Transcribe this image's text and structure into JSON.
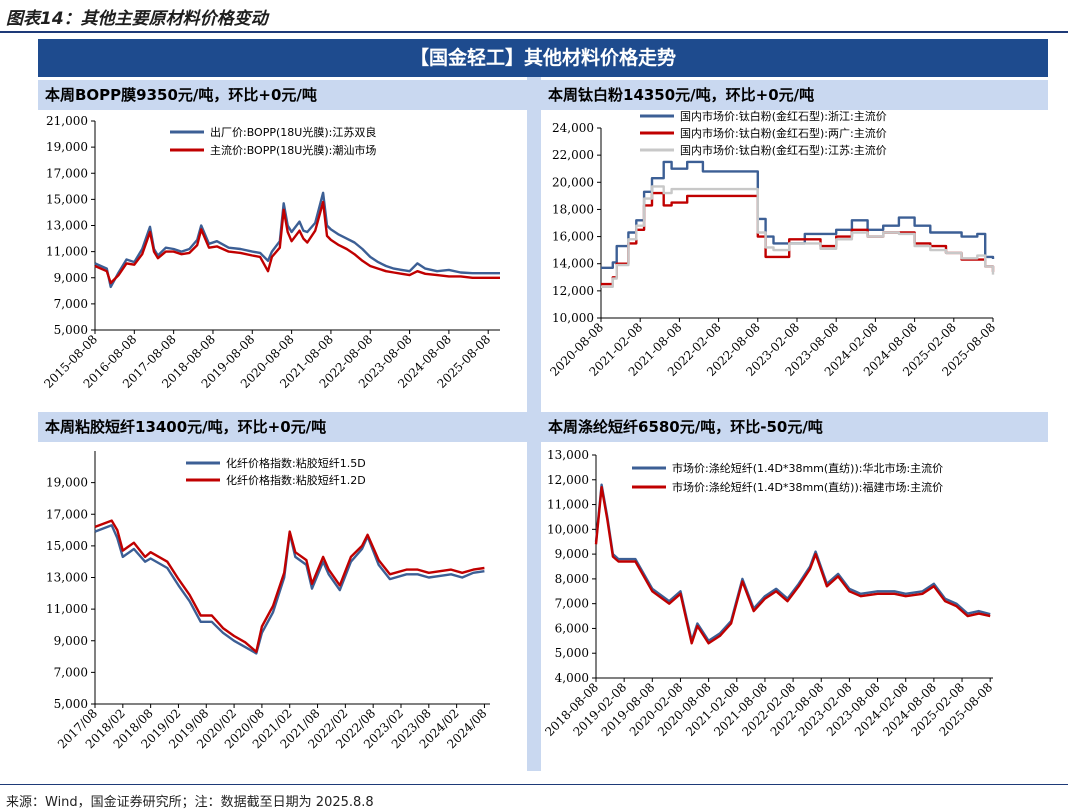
{
  "figure_title": "图表14：其他主要原材料价格变动",
  "banner": "【国金轻工】其他材料价格走势",
  "source": "来源：Wind，国金证券研究所；注：数据截至日期为 2025.8.8",
  "panels": [
    {
      "header": "本周BOPP膜9350元/吨，环比+0元/吨"
    },
    {
      "header": "本周钛白粉14350元/吨，环比+0元/吨"
    },
    {
      "header": "本周粘胶短纤13400元/吨，环比+0元/吨"
    },
    {
      "header": "本周涤纶短纤6580元/吨，环比-50元/吨"
    }
  ],
  "chart_data": [
    {
      "type": "line",
      "title": "本周BOPP膜9350元/吨，环比+0元/吨",
      "ylim": [
        5000,
        21000
      ],
      "yticks": [
        5000,
        7000,
        9000,
        11000,
        13000,
        15000,
        17000,
        19000,
        21000
      ],
      "ytick_labels": [
        "5,000",
        "7,000",
        "9,000",
        "11,000",
        "13,000",
        "15,000",
        "17,000",
        "19,000",
        "21,000"
      ],
      "xlim": [
        2015.6,
        2025.9
      ],
      "xticks": [
        2015.6,
        2016.6,
        2017.6,
        2018.6,
        2019.6,
        2020.6,
        2021.6,
        2022.6,
        2023.6,
        2024.6,
        2025.6
      ],
      "xtick_labels": [
        "2015-08-08",
        "2016-08-08",
        "2017-08-08",
        "2018-08-08",
        "2019-08-08",
        "2020-08-08",
        "2021-08-08",
        "2022-08-08",
        "2023-08-08",
        "2024-08-08",
        "2025-08-08"
      ],
      "legend_position": "top-center",
      "series": [
        {
          "name": "出厂价:BOPP(18U光膜):江苏双良",
          "color": "#3c5f95",
          "x": [
            2015.6,
            2015.9,
            2016.0,
            2016.2,
            2016.4,
            2016.6,
            2016.8,
            2017.0,
            2017.1,
            2017.2,
            2017.4,
            2017.6,
            2017.8,
            2018.0,
            2018.2,
            2018.3,
            2018.5,
            2018.7,
            2019.0,
            2019.3,
            2019.6,
            2019.8,
            2020.0,
            2020.1,
            2020.3,
            2020.4,
            2020.5,
            2020.6,
            2020.8,
            2020.9,
            2021.0,
            2021.2,
            2021.4,
            2021.5,
            2021.6,
            2021.8,
            2022.0,
            2022.2,
            2022.4,
            2022.6,
            2022.8,
            2023.0,
            2023.2,
            2023.4,
            2023.6,
            2023.8,
            2024.0,
            2024.3,
            2024.6,
            2024.9,
            2025.2,
            2025.5,
            2025.9
          ],
          "y": [
            10100,
            9700,
            8300,
            9400,
            10400,
            10200,
            11200,
            12900,
            11200,
            10700,
            11300,
            11200,
            11000,
            11200,
            11900,
            13000,
            11600,
            11800,
            11300,
            11200,
            11000,
            10900,
            10300,
            11000,
            11800,
            14700,
            13000,
            12500,
            13300,
            12600,
            12500,
            13200,
            15500,
            13000,
            12700,
            12300,
            12000,
            11700,
            11200,
            10600,
            10200,
            9900,
            9700,
            9600,
            9500,
            10100,
            9700,
            9500,
            9600,
            9400,
            9350,
            9350,
            9350
          ]
        },
        {
          "name": "主流价:BOPP(18U光膜):潮汕市场",
          "color": "#c00000",
          "x": [
            2015.6,
            2015.9,
            2016.0,
            2016.2,
            2016.4,
            2016.6,
            2016.8,
            2017.0,
            2017.1,
            2017.2,
            2017.4,
            2017.6,
            2017.8,
            2018.0,
            2018.2,
            2018.3,
            2018.5,
            2018.7,
            2019.0,
            2019.3,
            2019.6,
            2019.8,
            2020.0,
            2020.1,
            2020.3,
            2020.4,
            2020.5,
            2020.6,
            2020.8,
            2020.9,
            2021.0,
            2021.2,
            2021.4,
            2021.5,
            2021.6,
            2021.8,
            2022.0,
            2022.2,
            2022.4,
            2022.6,
            2022.8,
            2023.0,
            2023.2,
            2023.4,
            2023.6,
            2023.8,
            2024.0,
            2024.3,
            2024.6,
            2024.9,
            2025.2,
            2025.5,
            2025.9
          ],
          "y": [
            9900,
            9500,
            8600,
            9200,
            10100,
            10000,
            10800,
            12500,
            11000,
            10500,
            11000,
            11000,
            10800,
            10900,
            11500,
            12700,
            11300,
            11400,
            11000,
            10900,
            10700,
            10600,
            9500,
            10600,
            11300,
            14200,
            12500,
            11800,
            12600,
            12000,
            11700,
            12600,
            14800,
            12200,
            11900,
            11500,
            11200,
            10800,
            10300,
            9900,
            9700,
            9500,
            9400,
            9300,
            9200,
            9500,
            9300,
            9200,
            9100,
            9100,
            9000,
            9000,
            9000
          ]
        }
      ]
    },
    {
      "type": "line",
      "title": "本周钛白粉14350元/吨，环比+0元/吨",
      "ylim": [
        10000,
        24000
      ],
      "yticks": [
        10000,
        12000,
        14000,
        16000,
        18000,
        20000,
        22000,
        24000
      ],
      "ytick_labels": [
        "10,000",
        "12,000",
        "14,000",
        "16,000",
        "18,000",
        "20,000",
        "22,000",
        "24,000"
      ],
      "xlim": [
        2020.6,
        2025.6
      ],
      "xticks": [
        2020.6,
        2021.1,
        2021.6,
        2022.1,
        2022.6,
        2023.1,
        2023.6,
        2024.1,
        2024.6,
        2025.1,
        2025.6
      ],
      "xtick_labels": [
        "2020-08-08",
        "2021-02-08",
        "2021-08-08",
        "2022-02-08",
        "2022-08-08",
        "2023-02-08",
        "2023-08-08",
        "2024-02-08",
        "2024-08-08",
        "2025-02-08",
        "2025-08-08"
      ],
      "legend_position": "top",
      "series": [
        {
          "name": "国内市场价:钛白粉(金红石型):浙江:主流价",
          "color": "#3c5f95",
          "x": [
            2020.6,
            2020.75,
            2020.8,
            2020.95,
            2021.05,
            2021.15,
            2021.25,
            2021.4,
            2021.5,
            2021.7,
            2021.9,
            2022.2,
            2022.5,
            2022.6,
            2022.7,
            2022.8,
            2023.0,
            2023.2,
            2023.4,
            2023.6,
            2023.8,
            2024.0,
            2024.2,
            2024.4,
            2024.6,
            2024.8,
            2025.0,
            2025.2,
            2025.4,
            2025.5,
            2025.6
          ],
          "y": [
            13700,
            14100,
            15300,
            16300,
            17200,
            19300,
            20300,
            21500,
            21000,
            21500,
            20800,
            20800,
            20800,
            17300,
            16000,
            15500,
            15500,
            16200,
            16200,
            16500,
            17200,
            16500,
            16800,
            17400,
            16800,
            16300,
            16300,
            16000,
            16200,
            14500,
            14350
          ]
        },
        {
          "name": "国内市场价:钛白粉(金红石型):两广:主流价",
          "color": "#c00000",
          "x": [
            2020.6,
            2020.75,
            2020.8,
            2020.95,
            2021.05,
            2021.15,
            2021.25,
            2021.4,
            2021.5,
            2021.7,
            2021.9,
            2022.2,
            2022.5,
            2022.6,
            2022.7,
            2022.8,
            2023.0,
            2023.2,
            2023.4,
            2023.6,
            2023.8,
            2024.0,
            2024.2,
            2024.4,
            2024.6,
            2024.8,
            2025.0,
            2025.2,
            2025.4,
            2025.5,
            2025.6
          ],
          "y": [
            12500,
            13000,
            14000,
            15500,
            16500,
            18300,
            19200,
            18300,
            18500,
            19000,
            19000,
            19000,
            19000,
            16000,
            14500,
            14500,
            15800,
            15800,
            15300,
            16000,
            16500,
            16000,
            16300,
            16300,
            15500,
            15300,
            14800,
            14300,
            14300,
            13800,
            13400
          ]
        },
        {
          "name": "国内市场价:钛白粉(金红石型):江苏:主流价",
          "color": "#c8c8c8",
          "x": [
            2020.6,
            2020.75,
            2020.8,
            2020.95,
            2021.05,
            2021.15,
            2021.25,
            2021.4,
            2021.5,
            2021.7,
            2021.9,
            2022.2,
            2022.5,
            2022.6,
            2022.7,
            2022.8,
            2023.0,
            2023.2,
            2023.4,
            2023.6,
            2023.8,
            2024.0,
            2024.2,
            2024.4,
            2024.6,
            2024.8,
            2025.0,
            2025.2,
            2025.4,
            2025.5,
            2025.6
          ],
          "y": [
            12300,
            12900,
            13900,
            15800,
            16800,
            18800,
            19700,
            19200,
            19500,
            19500,
            19500,
            19500,
            19500,
            16300,
            15200,
            15000,
            15500,
            15500,
            15100,
            15800,
            16300,
            16000,
            16300,
            16200,
            15300,
            15000,
            14800,
            14400,
            14600,
            13800,
            13200
          ]
        }
      ]
    },
    {
      "type": "line",
      "title": "本周粘胶短纤13400元/吨，环比+0元/吨",
      "ylim": [
        5000,
        21000
      ],
      "yticks": [
        5000,
        7000,
        9000,
        11000,
        13000,
        15000,
        17000,
        19000
      ],
      "ytick_labels": [
        "5,000",
        "7,000",
        "9,000",
        "11,000",
        "13,000",
        "15,000",
        "17,000",
        "19,000"
      ],
      "xlim": [
        2017.6,
        2024.7
      ],
      "xticks": [
        2017.6,
        2018.1,
        2018.6,
        2019.1,
        2019.6,
        2020.1,
        2020.6,
        2021.1,
        2021.6,
        2022.1,
        2022.6,
        2023.1,
        2023.6,
        2024.1,
        2024.6
      ],
      "xtick_labels": [
        "2017/08",
        "2018/02",
        "2018/08",
        "2019/02",
        "2019/08",
        "2020/02",
        "2020/08",
        "2021/02",
        "2021/08",
        "2022/02",
        "2022/08",
        "2023/02",
        "2023/08",
        "2024/02",
        "2024/08"
      ],
      "legend_position": "top-center",
      "series": [
        {
          "name": "化纤价格指数:粘胶短纤1.5D",
          "color": "#3c5f95",
          "x": [
            2017.6,
            2017.9,
            2018.0,
            2018.1,
            2018.3,
            2018.5,
            2018.6,
            2018.9,
            2019.1,
            2019.3,
            2019.5,
            2019.7,
            2019.9,
            2020.1,
            2020.3,
            2020.5,
            2020.6,
            2020.8,
            2021.0,
            2021.1,
            2021.2,
            2021.4,
            2021.5,
            2021.7,
            2021.8,
            2022.0,
            2022.2,
            2022.4,
            2022.5,
            2022.7,
            2022.9,
            2023.2,
            2023.4,
            2023.6,
            2023.8,
            2024.0,
            2024.2,
            2024.4,
            2024.6
          ],
          "y": [
            15900,
            16300,
            15500,
            14300,
            14800,
            14000,
            14200,
            13600,
            12500,
            11500,
            10200,
            10200,
            9500,
            9000,
            8600,
            8200,
            9500,
            10800,
            13000,
            15800,
            14300,
            13800,
            12300,
            14000,
            13200,
            12200,
            14000,
            14800,
            15600,
            13800,
            12900,
            13200,
            13200,
            13000,
            13100,
            13200,
            13000,
            13300,
            13400
          ]
        },
        {
          "name": "化纤价格指数:粘胶短纤1.2D",
          "color": "#c00000",
          "x": [
            2017.6,
            2017.9,
            2018.0,
            2018.1,
            2018.3,
            2018.5,
            2018.6,
            2018.9,
            2019.1,
            2019.3,
            2019.5,
            2019.7,
            2019.9,
            2020.1,
            2020.3,
            2020.5,
            2020.6,
            2020.8,
            2021.0,
            2021.1,
            2021.2,
            2021.4,
            2021.5,
            2021.7,
            2021.8,
            2022.0,
            2022.2,
            2022.4,
            2022.5,
            2022.7,
            2022.9,
            2023.2,
            2023.4,
            2023.6,
            2023.8,
            2024.0,
            2024.2,
            2024.4,
            2024.6
          ],
          "y": [
            16200,
            16600,
            16000,
            14700,
            15200,
            14300,
            14600,
            14000,
            12900,
            11900,
            10600,
            10600,
            9800,
            9300,
            8900,
            8300,
            9900,
            11200,
            13300,
            15900,
            14600,
            14100,
            12600,
            14300,
            13500,
            12500,
            14300,
            15000,
            15700,
            14100,
            13200,
            13500,
            13500,
            13300,
            13400,
            13500,
            13300,
            13500,
            13600
          ]
        }
      ]
    },
    {
      "type": "line",
      "title": "本周涤纶短纤6580元/吨，环比-50元/吨",
      "ylim": [
        4000,
        13000
      ],
      "yticks": [
        4000,
        5000,
        6000,
        7000,
        8000,
        9000,
        10000,
        11000,
        12000,
        13000
      ],
      "ytick_labels": [
        "4,000",
        "5,000",
        "6,000",
        "7,000",
        "8,000",
        "9,000",
        "10,000",
        "11,000",
        "12,000",
        "13,000"
      ],
      "xlim": [
        2018.6,
        2025.65
      ],
      "xticks": [
        2018.6,
        2019.1,
        2019.6,
        2020.1,
        2020.6,
        2021.1,
        2021.6,
        2022.1,
        2022.6,
        2023.1,
        2023.6,
        2024.1,
        2024.6,
        2025.1,
        2025.6
      ],
      "xtick_labels": [
        "2018-08-08",
        "2019-02-08",
        "2019-08-08",
        "2020-02-08",
        "2020-08-08",
        "2021-02-08",
        "2021-08-08",
        "2022-02-08",
        "2022-08-08",
        "2023-02-08",
        "2023-08-08",
        "2024-02-08",
        "2024-08-08",
        "2025-02-08",
        "2025-08-08"
      ],
      "legend_position": "top",
      "series": [
        {
          "name": "市场价:涤纶短纤(1.4D*38mm(直纺)):华北市场:主流价",
          "color": "#3c5f95",
          "x": [
            2018.6,
            2018.7,
            2018.8,
            2018.9,
            2019.0,
            2019.3,
            2019.6,
            2019.9,
            2020.1,
            2020.3,
            2020.4,
            2020.6,
            2020.8,
            2021.0,
            2021.2,
            2021.4,
            2021.6,
            2021.8,
            2022.0,
            2022.2,
            2022.4,
            2022.5,
            2022.7,
            2022.9,
            2023.1,
            2023.3,
            2023.6,
            2023.9,
            2024.1,
            2024.4,
            2024.6,
            2024.8,
            2025.0,
            2025.2,
            2025.4,
            2025.6
          ],
          "y": [
            9500,
            11800,
            10500,
            9000,
            8800,
            8800,
            7600,
            7100,
            7500,
            5500,
            6200,
            5500,
            5800,
            6300,
            8000,
            6800,
            7300,
            7600,
            7200,
            7800,
            8500,
            9100,
            7800,
            8200,
            7600,
            7400,
            7500,
            7500,
            7400,
            7500,
            7800,
            7200,
            7000,
            6600,
            6700,
            6580
          ]
        },
        {
          "name": "市场价:涤纶短纤(1.4D*38mm(直纺)):福建市场:主流价",
          "color": "#c00000",
          "x": [
            2018.6,
            2018.7,
            2018.8,
            2018.9,
            2019.0,
            2019.3,
            2019.6,
            2019.9,
            2020.1,
            2020.3,
            2020.4,
            2020.6,
            2020.8,
            2021.0,
            2021.2,
            2021.4,
            2021.6,
            2021.8,
            2022.0,
            2022.2,
            2022.4,
            2022.5,
            2022.7,
            2022.9,
            2023.1,
            2023.3,
            2023.6,
            2023.9,
            2024.1,
            2024.4,
            2024.6,
            2024.8,
            2025.0,
            2025.2,
            2025.4,
            2025.6
          ],
          "y": [
            9400,
            11700,
            10400,
            8900,
            8700,
            8700,
            7500,
            7000,
            7400,
            5400,
            6100,
            5400,
            5700,
            6200,
            7900,
            6700,
            7200,
            7500,
            7100,
            7700,
            8400,
            9000,
            7700,
            8100,
            7500,
            7300,
            7400,
            7400,
            7300,
            7400,
            7700,
            7100,
            6900,
            6500,
            6600,
            6500
          ]
        }
      ]
    }
  ]
}
